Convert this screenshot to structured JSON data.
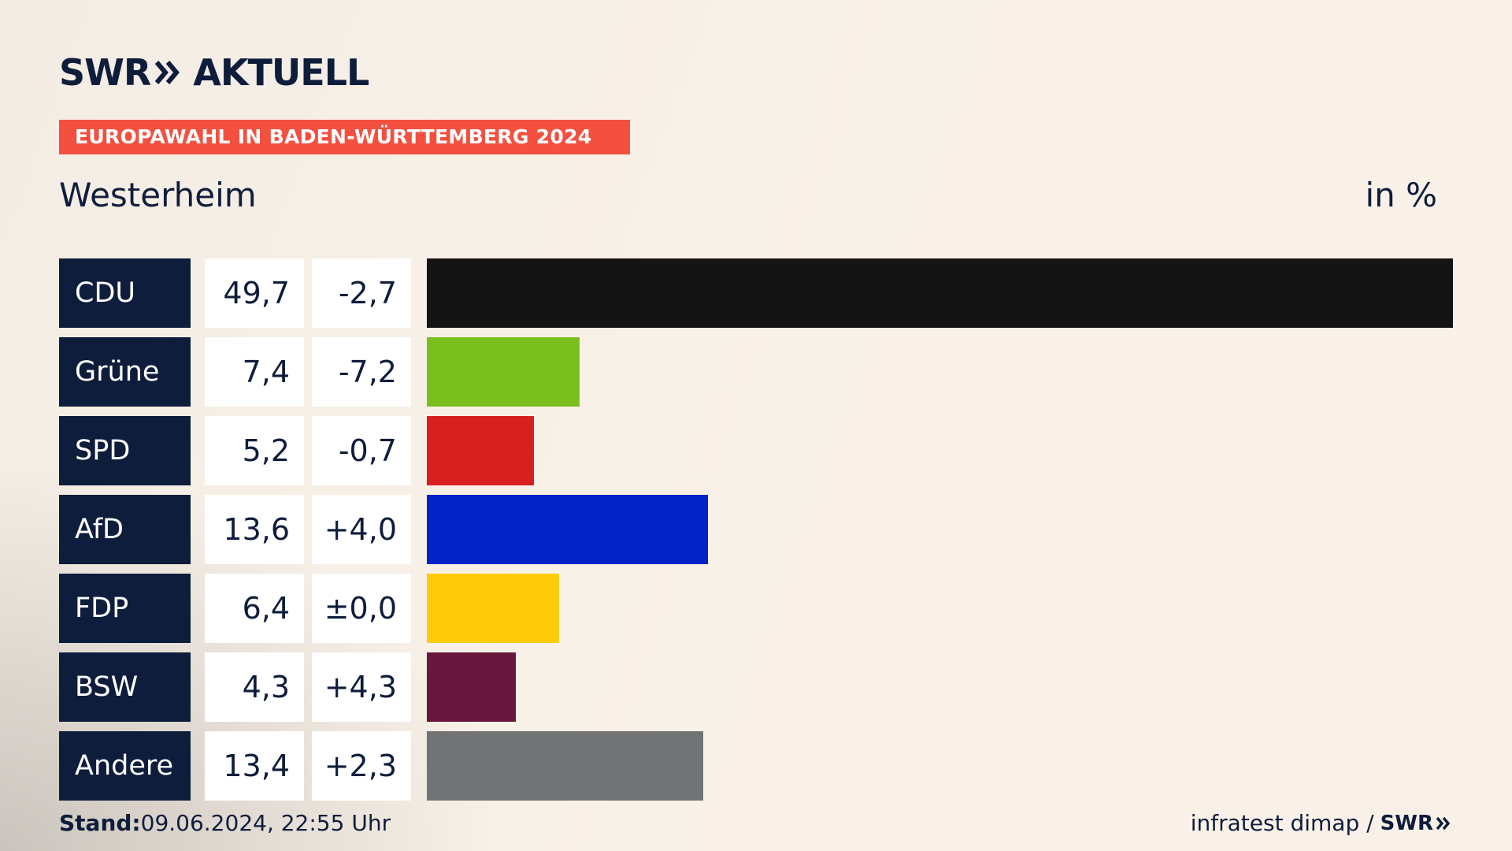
{
  "brand": {
    "logo_text": "SWR",
    "logo_suffix": "AKTUELL",
    "logo_icon": "double-chevron-right-icon",
    "banner_color": "#f45040",
    "navy": "#0f1d3c"
  },
  "header": {
    "banner": "EUROPAWAHL IN BADEN-WÜRTTEMBERG 2024",
    "region": "Westerheim",
    "unit": "in %"
  },
  "chart_data": {
    "type": "bar",
    "orientation": "horizontal",
    "categories": [
      "CDU",
      "Grüne",
      "SPD",
      "AfD",
      "FDP",
      "BSW",
      "Andere"
    ],
    "values": [
      49.7,
      7.4,
      5.2,
      13.6,
      6.4,
      4.3,
      13.4
    ],
    "value_labels": [
      "49,7",
      "7,4",
      "5,2",
      "13,6",
      "6,4",
      "4,3",
      "13,4"
    ],
    "diff_labels": [
      "-2,7",
      "-7,2",
      "-0,7",
      "+4,0",
      "±0,0",
      "+4,3",
      "+2,3"
    ],
    "colors": [
      "#141414",
      "#7bbf1e",
      "#d71f1f",
      "#0221c7",
      "#fecc0a",
      "#68183d",
      "#727375"
    ],
    "xlim": [
      0,
      49.7
    ],
    "grid": false,
    "legend": "none"
  },
  "footer": {
    "stand_label": "Stand:",
    "stand_value": "09.06.2024, 22:55 Uhr",
    "source": "infratest dimap /",
    "source_logo": "SWR"
  }
}
